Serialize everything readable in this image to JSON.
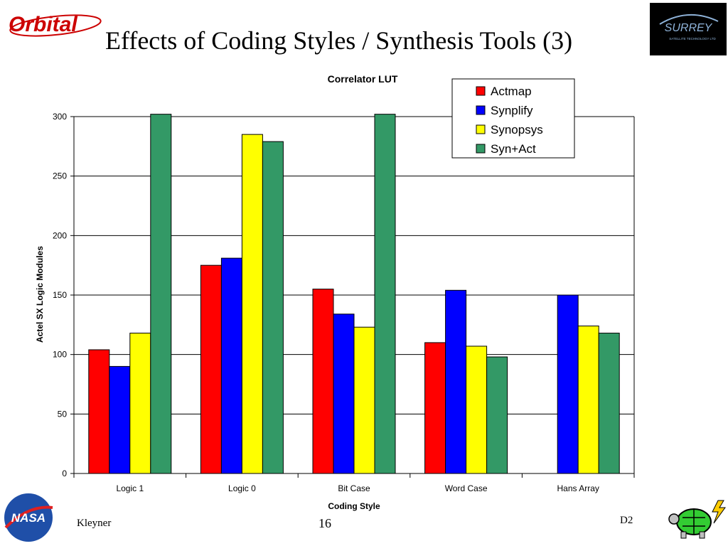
{
  "slide": {
    "title": "Effects of Coding Styles / Synthesis Tools (3)",
    "author": "Kleyner",
    "page_number": "16",
    "code": "D2",
    "logos": {
      "top_left": "Orbital",
      "top_right": "SURREY",
      "top_right_sub": "SATELLITE TECHNOLOGY LTD",
      "bottom_left": "NASA"
    }
  },
  "colors": {
    "Actmap": "#ff0000",
    "Synplify": "#0000ff",
    "Synopsys": "#ffff00",
    "SynAct": "#339966"
  },
  "chart_data": {
    "type": "bar",
    "title": "Correlator LUT",
    "xlabel": "Coding Style",
    "ylabel": "Actel SX Logic Modules",
    "categories": [
      "Logic 1",
      "Logic 0",
      "Bit Case",
      "Word Case",
      "Hans Array"
    ],
    "series": [
      {
        "name": "Actmap",
        "color": "#ff0000",
        "values": [
          104,
          175,
          155,
          110,
          null
        ]
      },
      {
        "name": "Synplify",
        "color": "#0000ff",
        "values": [
          90,
          181,
          134,
          154,
          150
        ]
      },
      {
        "name": "Synopsys",
        "color": "#ffff00",
        "values": [
          118,
          285,
          123,
          107,
          124
        ]
      },
      {
        "name": "Syn+Act",
        "color": "#339966",
        "values": [
          302,
          279,
          302,
          98,
          118
        ]
      }
    ],
    "ylim": [
      0,
      300
    ],
    "yticks": [
      0,
      50,
      100,
      150,
      200,
      250,
      300
    ],
    "grid": true,
    "legend": "top-right"
  }
}
